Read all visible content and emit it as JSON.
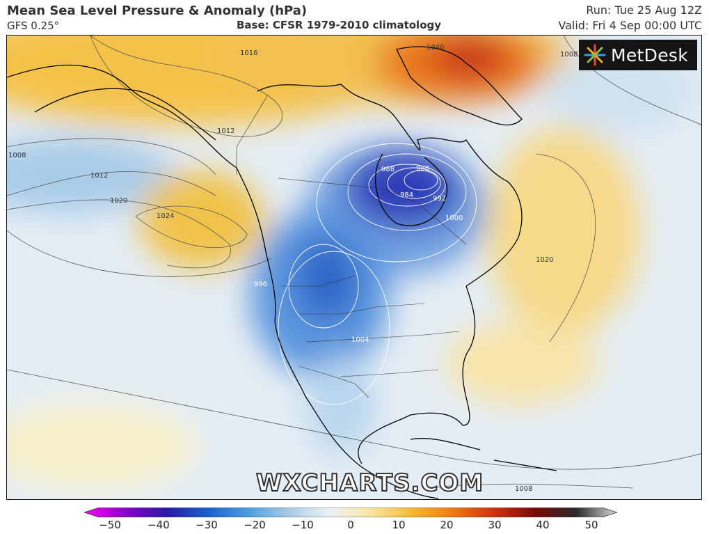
{
  "header": {
    "title": "Mean Sea Level Pressure & Anomaly (hPa)",
    "model": "GFS 0.25°",
    "base": "Base: CFSR 1979-2010 climatology",
    "run": "Run: Tue 25 Aug 12Z",
    "valid": "Valid: Fri 4 Sep 00:00 UTC"
  },
  "logo": {
    "text": "MetDesk",
    "icon": "metdesk-star-icon"
  },
  "watermark": "WXCHARTS.COM",
  "isobar_labels": {
    "l1016": "1016",
    "l1012a": "1012",
    "l1008a": "1008",
    "l1012b": "1012",
    "l1020a": "1020",
    "l1024": "1024",
    "l1040": "1040",
    "l1008b": "1008",
    "l1020b": "1020",
    "l1008c": "1008",
    "l988": "988",
    "l980": "980",
    "l984": "984",
    "l992": "992",
    "l1000": "1000",
    "l996": "996",
    "l1004": "1004"
  },
  "colorbar": {
    "ticks": [
      "−50",
      "−40",
      "−30",
      "−20",
      "−10",
      "0",
      "10",
      "20",
      "30",
      "40",
      "50"
    ],
    "colors": [
      "#ff00ff",
      "#8a00c8",
      "#2a1aa8",
      "#1a5fd0",
      "#4a9ee0",
      "#a8cde8",
      "#eef2f5",
      "#fbe6a0",
      "#f6b830",
      "#f07a10",
      "#d23010",
      "#7a0a0a",
      "#2a2a2a",
      "#d8d8d8"
    ]
  }
}
